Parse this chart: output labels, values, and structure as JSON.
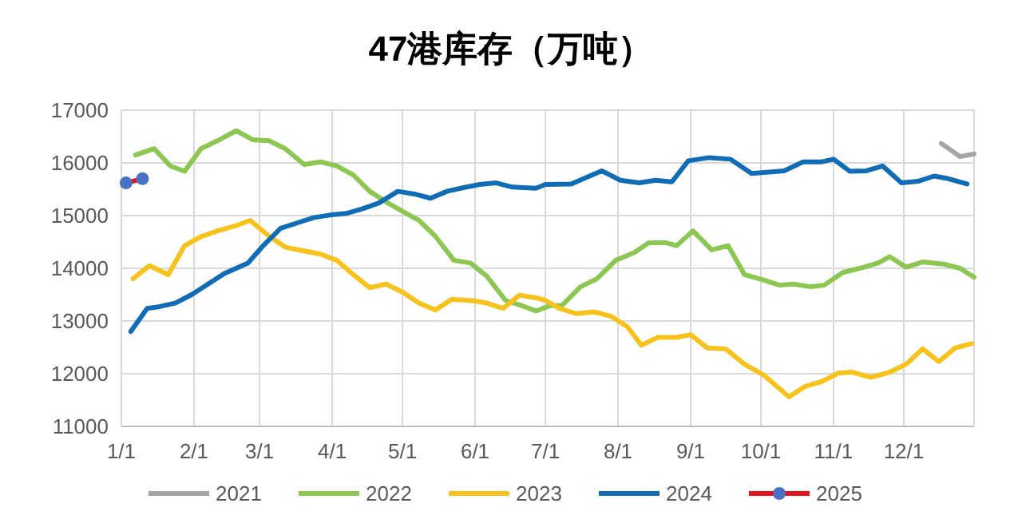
{
  "chart_data": {
    "type": "line",
    "title": "47港库存（万吨）",
    "xlim": [
      "--01-01",
      "--12-31"
    ],
    "xticks": [
      {
        "value": "--01-01",
        "label": "1/1"
      },
      {
        "value": "--02-01",
        "label": "2/1"
      },
      {
        "value": "--03-01",
        "label": "3/1"
      },
      {
        "value": "--04-01",
        "label": "4/1"
      },
      {
        "value": "--05-01",
        "label": "5/1"
      },
      {
        "value": "--06-01",
        "label": "6/1"
      },
      {
        "value": "--07-01",
        "label": "7/1"
      },
      {
        "value": "--08-01",
        "label": "8/1"
      },
      {
        "value": "--09-01",
        "label": "9/1"
      },
      {
        "value": "--10-01",
        "label": "10/1"
      },
      {
        "value": "--11-01",
        "label": "11/1"
      },
      {
        "value": "--12-01",
        "label": "12/1"
      }
    ],
    "ylim": [
      11000,
      17000
    ],
    "yticks": [
      11000,
      12000,
      13000,
      14000,
      15000,
      16000,
      17000
    ],
    "grid": true,
    "legend": "bottom",
    "marker": "none",
    "line_style": "solid",
    "series": [
      {
        "name": "2021",
        "color": "#a5a5a5",
        "x": [
          "--12-17",
          "--12-25",
          "--12-31"
        ],
        "values": [
          16370,
          16120,
          16170
        ]
      },
      {
        "name": "2022",
        "color": "#8cc751",
        "x": [
          "--01-07",
          "--01-15",
          "--01-22",
          "--01-28",
          "--02-04",
          "--02-11",
          "--02-19",
          "--02-26",
          "--03-05",
          "--03-12",
          "--03-20",
          "--03-27",
          "--04-03",
          "--04-10",
          "--04-17",
          "--04-24",
          "--05-01",
          "--05-08",
          "--05-15",
          "--05-23",
          "--05-30",
          "--06-06",
          "--06-14",
          "--06-21",
          "--06-27",
          "--07-03",
          "--07-08",
          "--07-16",
          "--07-23",
          "--07-31",
          "--08-08",
          "--08-14",
          "--08-21",
          "--08-26",
          "--09-02",
          "--09-10",
          "--09-17",
          "--09-24",
          "--10-02",
          "--10-09",
          "--10-15",
          "--10-22",
          "--10-28",
          "--11-05",
          "--11-14",
          "--11-20",
          "--11-25",
          "--12-02",
          "--12-09",
          "--12-18",
          "--12-25",
          "--12-31"
        ],
        "values": [
          16150,
          16270,
          15940,
          15840,
          16270,
          16420,
          16610,
          16440,
          16420,
          16270,
          15970,
          16020,
          15940,
          15770,
          15460,
          15260,
          15080,
          14910,
          14610,
          14150,
          14100,
          13850,
          13390,
          13290,
          13190,
          13290,
          13290,
          13650,
          13800,
          14150,
          14300,
          14480,
          14490,
          14430,
          14710,
          14350,
          14430,
          13880,
          13780,
          13680,
          13700,
          13650,
          13680,
          13920,
          14020,
          14100,
          14220,
          14020,
          14120,
          14080,
          14000,
          13830
        ]
      },
      {
        "name": "2023",
        "color": "#f7c21c",
        "x": [
          "--01-06",
          "--01-13",
          "--01-21",
          "--01-28",
          "--02-04",
          "--02-11",
          "--02-19",
          "--02-25",
          "--03-05",
          "--03-12",
          "--03-20",
          "--03-27",
          "--04-03",
          "--04-10",
          "--04-17",
          "--04-24",
          "--05-01",
          "--05-08",
          "--05-15",
          "--05-22",
          "--05-30",
          "--06-06",
          "--06-13",
          "--06-20",
          "--06-27",
          "--07-01",
          "--07-07",
          "--07-14",
          "--07-22",
          "--07-29",
          "--08-05",
          "--08-11",
          "--08-18",
          "--08-26",
          "--09-01",
          "--09-08",
          "--09-16",
          "--09-24",
          "--10-02",
          "--10-13",
          "--10-20",
          "--10-27",
          "--11-03",
          "--11-09",
          "--11-17",
          "--11-25",
          "--12-02",
          "--12-09",
          "--12-16",
          "--12-23",
          "--12-30"
        ],
        "values": [
          13800,
          14050,
          13880,
          14430,
          14600,
          14710,
          14810,
          14910,
          14610,
          14400,
          14330,
          14270,
          14150,
          13880,
          13630,
          13700,
          13550,
          13340,
          13210,
          13410,
          13390,
          13340,
          13240,
          13490,
          13440,
          13390,
          13240,
          13140,
          13170,
          13090,
          12890,
          12540,
          12690,
          12690,
          12740,
          12490,
          12470,
          12180,
          11980,
          11560,
          11760,
          11850,
          12010,
          12030,
          11930,
          12030,
          12180,
          12470,
          12230,
          12490,
          12570
        ]
      },
      {
        "name": "2024",
        "color": "#116cb6",
        "x": [
          "--01-05",
          "--01-12",
          "--01-17",
          "--01-24",
          "--01-31",
          "--02-07",
          "--02-14",
          "--02-24",
          "--03-03",
          "--03-10",
          "--03-17",
          "--03-24",
          "--03-31",
          "--04-07",
          "--04-14",
          "--04-21",
          "--04-29",
          "--05-06",
          "--05-13",
          "--05-20",
          "--05-27",
          "--06-03",
          "--06-10",
          "--06-17",
          "--06-27",
          "--07-01",
          "--07-12",
          "--07-25",
          "--08-02",
          "--08-10",
          "--08-17",
          "--08-24",
          "--08-31",
          "--09-09",
          "--09-18",
          "--09-27",
          "--10-11",
          "--10-19",
          "--10-27",
          "--11-01",
          "--11-08",
          "--11-15",
          "--11-22",
          "--11-30",
          "--12-07",
          "--12-14",
          "--12-20",
          "--12-28"
        ],
        "values": [
          12800,
          13240,
          13270,
          13340,
          13500,
          13700,
          13900,
          14100,
          14450,
          14760,
          14860,
          14960,
          15010,
          15040,
          15130,
          15240,
          15460,
          15410,
          15330,
          15460,
          15530,
          15590,
          15620,
          15540,
          15520,
          15590,
          15600,
          15850,
          15670,
          15620,
          15670,
          15640,
          16040,
          16100,
          16070,
          15800,
          15850,
          16020,
          16020,
          16070,
          15840,
          15850,
          15940,
          15620,
          15650,
          15750,
          15700,
          15600
        ]
      },
      {
        "name": "2025",
        "color": "#e3141c",
        "marker": "circle",
        "colors": [
          "#4a72c4",
          "#4a72c4"
        ],
        "x": [
          "--01-03",
          "--01-10"
        ],
        "values": [
          15620,
          15700
        ]
      }
    ]
  }
}
